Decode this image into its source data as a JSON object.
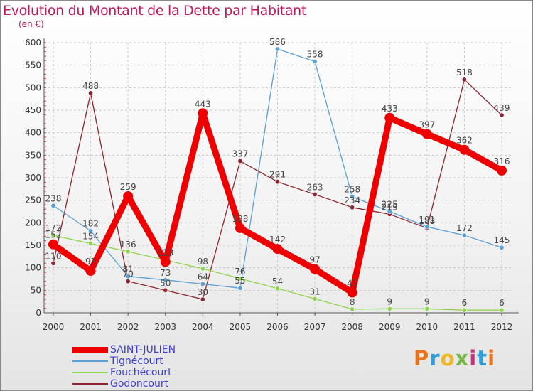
{
  "title": "Evolution du Montant de la Dette par Habitant",
  "unit": "(en €)",
  "logo": {
    "text": "Proxiti",
    "colors": [
      "#e8731a",
      "#2f9fd6",
      "#f0b820",
      "#7ab648",
      "#d12f7a",
      "#2f9fd6",
      "#e8731a"
    ]
  },
  "chart_data": {
    "type": "line",
    "x": [
      "2000",
      "2001",
      "2002",
      "2003",
      "2004",
      "2005",
      "2006",
      "2007",
      "2008",
      "2009",
      "2010",
      "2011",
      "2012"
    ],
    "ylim": [
      0,
      600
    ],
    "yticks": [
      0,
      50,
      100,
      150,
      200,
      250,
      300,
      350,
      400,
      450,
      500,
      550,
      600
    ],
    "grid": true,
    "legend_position": "bottom-left",
    "series": [
      {
        "name": "SAINT-JULIEN",
        "color": "#ee0000",
        "width": 9,
        "marker": 7,
        "values": [
          152,
          93,
          259,
          113,
          443,
          188,
          142,
          97,
          45,
          433,
          397,
          362,
          316
        ],
        "labels": [
          "152",
          "93",
          "259",
          "113",
          "443",
          "188",
          "142",
          "97",
          "45",
          "433",
          "397",
          "362",
          "316"
        ]
      },
      {
        "name": "Tignécourt",
        "color": "#5a9fd4",
        "width": 1.3,
        "marker": 3.2,
        "values": [
          238,
          182,
          81,
          73,
          64,
          55,
          586,
          558,
          258,
          225,
          191,
          172,
          145
        ],
        "labels": [
          "238",
          "182",
          "81",
          "73",
          "64",
          "55",
          "586",
          "558",
          "258",
          "225",
          "191",
          "172",
          "145"
        ]
      },
      {
        "name": "Fouchécourt",
        "color": "#8fd44a",
        "width": 1.3,
        "marker": 3.2,
        "values": [
          172,
          154,
          136,
          117,
          98,
          76,
          54,
          31,
          8,
          9,
          9,
          6,
          6
        ],
        "labels": [
          "172",
          "154",
          "136",
          "117",
          "98",
          "76",
          "54",
          "31",
          "8",
          "9",
          "9",
          "6",
          "6"
        ]
      },
      {
        "name": "Godoncourt",
        "color": "#8b2530",
        "width": 1.3,
        "marker": 3.2,
        "values": [
          110,
          488,
          70,
          50,
          30,
          337,
          291,
          263,
          234,
          219,
          188,
          518,
          439
        ],
        "labels": [
          "110",
          "488",
          "70",
          "50",
          "30",
          "337",
          "291",
          "263",
          "234",
          "219",
          "188",
          "518",
          "439"
        ]
      }
    ]
  }
}
